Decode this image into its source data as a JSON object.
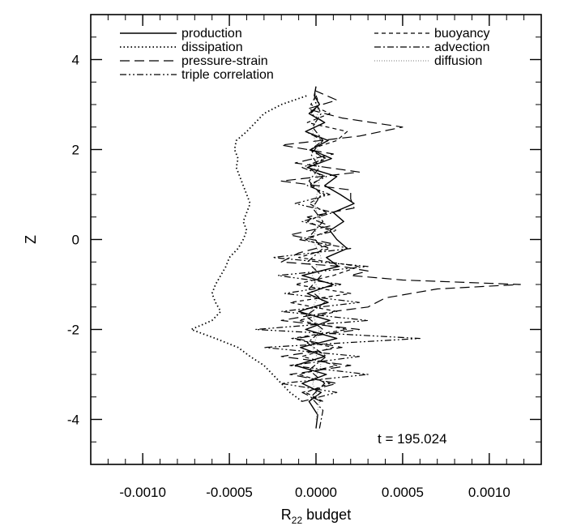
{
  "chart_data": {
    "type": "line",
    "title": "",
    "xlabel": "R",
    "xlabel_subscript": "22",
    "xlabel_suffix": " budget",
    "ylabel": "Z",
    "xlim": [
      -0.0013,
      0.0013
    ],
    "ylim": [
      -5,
      5
    ],
    "x_major_ticks": [
      -0.001,
      -0.0005,
      0.0,
      0.0005,
      0.001
    ],
    "x_tick_labels": [
      "-0.0010",
      "-0.0005",
      "0.0000",
      "0.0005",
      "0.0010"
    ],
    "x_minor_step": 0.0001,
    "y_major_ticks": [
      -4,
      -2,
      0,
      2,
      4
    ],
    "y_tick_labels": [
      "-4",
      "-2",
      "0",
      "2",
      "4"
    ],
    "y_minor_step": 0.5,
    "grid": false,
    "legend_position": "top",
    "annotation": "t = 195.024",
    "series": [
      {
        "name": "production",
        "dash": "solid",
        "z": [
          -4.2,
          -3.9,
          -3.6,
          -3.4,
          -3.2,
          -3.0,
          -2.8,
          -2.6,
          -2.4,
          -2.2,
          -2.0,
          -1.8,
          -1.6,
          -1.4,
          -1.2,
          -1.0,
          -0.8,
          -0.6,
          -0.4,
          -0.2,
          0.0,
          0.2,
          0.4,
          0.6,
          0.8,
          1.0,
          1.2,
          1.4,
          1.6,
          1.8,
          2.0,
          2.2,
          2.4,
          2.6,
          2.8,
          3.0,
          3.2,
          3.4
        ],
        "values": [
          0.0,
          1e-05,
          -4e-05,
          3e-05,
          -8e-05,
          6e-05,
          -0.00012,
          5e-05,
          -9e-05,
          0.00012,
          -6e-05,
          8e-05,
          -0.0001,
          7e-05,
          -5e-05,
          0.0001,
          -8e-05,
          0.00013,
          6e-05,
          0.00018,
          0.00012,
          8e-05,
          0.00016,
          0.0001,
          0.00022,
          0.00014,
          5e-05,
          0.00012,
          -5e-05,
          9e-05,
          -3e-05,
          7e-05,
          -6e-05,
          5e-05,
          -4e-05,
          2e-05,
          -1e-05,
          0.0
        ]
      },
      {
        "name": "dissipation",
        "dash": "dotted",
        "z": [
          -3.6,
          -3.4,
          -3.2,
          -3.0,
          -2.8,
          -2.6,
          -2.4,
          -2.2,
          -2.0,
          -1.8,
          -1.6,
          -1.4,
          -1.2,
          -1.0,
          -0.8,
          -0.6,
          -0.4,
          -0.2,
          0.0,
          0.2,
          0.4,
          0.6,
          0.8,
          1.0,
          1.2,
          1.4,
          1.6,
          1.8,
          2.0,
          2.2,
          2.4,
          2.6,
          2.8,
          3.0,
          3.2
        ],
        "values": [
          -8e-05,
          -0.00015,
          -0.0002,
          -0.00025,
          -0.0003,
          -0.00038,
          -0.00045,
          -0.00058,
          -0.00072,
          -0.0006,
          -0.00055,
          -0.00058,
          -0.0006,
          -0.00058,
          -0.00055,
          -0.00052,
          -0.0005,
          -0.00045,
          -0.00042,
          -0.0004,
          -0.00042,
          -0.0004,
          -0.00038,
          -0.0004,
          -0.00042,
          -0.00044,
          -0.00046,
          -0.00045,
          -0.00047,
          -0.00046,
          -0.0004,
          -0.00035,
          -0.0003,
          -0.0002,
          -5e-05
        ]
      },
      {
        "name": "pressure-strain",
        "dash": "longdash",
        "z": [
          -3.6,
          -3.4,
          -3.2,
          -3.0,
          -2.8,
          -2.6,
          -2.4,
          -2.2,
          -2.0,
          -1.8,
          -1.6,
          -1.5,
          -1.3,
          -1.1,
          -1.0,
          -0.9,
          -0.8,
          -0.7,
          -0.6,
          -0.5,
          -0.3,
          -0.1,
          0.1,
          0.3,
          0.5,
          0.7,
          0.9,
          1.1,
          1.3,
          1.5,
          1.7,
          1.9,
          2.1,
          2.3,
          2.5,
          2.7,
          2.9,
          3.1,
          3.3
        ],
        "values": [
          3e-05,
          -8e-05,
          0.00012,
          -0.00015,
          0.0002,
          -0.0002,
          0.00015,
          -0.00012,
          0.00025,
          -0.0002,
          0.0001,
          0.0003,
          0.0004,
          0.0007,
          0.00118,
          0.0005,
          0.0002,
          0.0003,
          0.00015,
          -0.0002,
          -0.0001,
          0.0001,
          -0.00015,
          8e-05,
          -5e-05,
          0.00022,
          0.0002,
          0.0002,
          -0.0002,
          0.00025,
          -0.00012,
          0.0001,
          -0.0002,
          0.00025,
          0.0005,
          0.00015,
          -5e-05,
          0.00012,
          0.0
        ]
      },
      {
        "name": "triple correlation",
        "dash": "dashdotdot",
        "z": [
          -3.6,
          -3.4,
          -3.2,
          -3.0,
          -2.8,
          -2.6,
          -2.4,
          -2.2,
          -2.0,
          -1.8,
          -1.6,
          -1.4,
          -1.2,
          -1.0,
          -0.8,
          -0.6,
          -0.4,
          -0.2,
          0.0,
          0.2,
          0.4,
          0.6,
          0.8,
          1.0,
          1.2,
          1.4,
          1.6,
          1.8,
          2.0,
          2.2,
          2.4,
          2.6,
          2.8,
          3.0,
          3.2
        ],
        "values": [
          -8e-05,
          0.00012,
          -0.0002,
          0.0003,
          -0.00015,
          0.00025,
          -0.0003,
          0.0006,
          -0.00035,
          0.0003,
          -0.0002,
          0.00025,
          -0.00018,
          0.00015,
          -0.00022,
          0.0003,
          -0.00025,
          0.0002,
          -0.0001,
          0.00012,
          -8e-05,
          0.0001,
          -0.00012,
          8e-05,
          -5e-05,
          6e-05,
          -8e-05,
          5e-05,
          -3e-05,
          4e-05,
          -6e-05,
          5e-05,
          -3e-05,
          2e-05,
          0.0
        ]
      },
      {
        "name": "buoyancy",
        "dash": "shortdash",
        "z": [
          -3.6,
          -3.4,
          -3.2,
          -3.0,
          -2.8,
          -2.6,
          -2.4,
          -2.2,
          -2.0,
          -1.8,
          -1.6,
          -1.4,
          -1.2,
          -1.0,
          -0.8,
          -0.6,
          -0.4,
          -0.2,
          0.0,
          0.2,
          0.4,
          0.6,
          0.8,
          1.0,
          1.2,
          1.4,
          1.6,
          1.8,
          2.0,
          2.2,
          2.4,
          2.6,
          2.8,
          3.0,
          3.2
        ],
        "values": [
          4e-05,
          -6e-05,
          8e-05,
          -0.0001,
          0.00012,
          -8e-05,
          0.0001,
          -0.00014,
          0.00018,
          -0.0001,
          0.00012,
          -0.00015,
          0.0002,
          -0.00012,
          0.0001,
          0.00025,
          -0.0001,
          8e-05,
          -6e-05,
          8e-05,
          -5e-05,
          6e-05,
          -4e-05,
          5e-05,
          -3e-05,
          4e-05,
          -5e-05,
          6e-05,
          -4e-05,
          0.00012,
          0.00018,
          -5e-05,
          8e-05,
          -3e-05,
          0.0
        ]
      },
      {
        "name": "advection",
        "dash": "dashdot",
        "z": [
          -4.2,
          -3.8,
          -3.5,
          -3.2,
          -2.9,
          -2.6,
          -2.3,
          -2.0,
          -1.7,
          -1.4,
          -1.1,
          -0.8,
          -0.5,
          -0.2,
          0.1,
          0.4,
          0.7,
          1.0,
          1.3,
          1.6,
          1.9,
          2.2,
          2.5,
          2.8,
          3.1,
          3.4
        ],
        "values": [
          2e-05,
          4e-05,
          -3e-05,
          5e-05,
          -4e-05,
          6e-05,
          -5e-05,
          4e-05,
          -6e-05,
          5e-05,
          -4e-05,
          3e-05,
          -5e-05,
          4e-05,
          -3e-05,
          4e-05,
          -2e-05,
          3e-05,
          -4e-05,
          2e-05,
          -3e-05,
          4e-05,
          -2e-05,
          3e-05,
          -1e-05,
          0.0
        ]
      },
      {
        "name": "diffusion",
        "dash": "finedot",
        "z": [
          -4.0,
          -3.6,
          -3.2,
          -2.8,
          -2.4,
          -2.0,
          -1.6,
          -1.2,
          -0.8,
          -0.4,
          0.0,
          0.4,
          0.8,
          1.2,
          1.6,
          2.0,
          2.4,
          2.8,
          3.2
        ],
        "values": [
          0.0,
          2e-05,
          -2e-05,
          3e-05,
          -2e-05,
          2e-05,
          -3e-05,
          2e-05,
          -2e-05,
          3e-05,
          -2e-05,
          2e-05,
          -1e-05,
          2e-05,
          -1e-05,
          1e-05,
          -2e-05,
          1e-05,
          0.0
        ]
      }
    ]
  }
}
